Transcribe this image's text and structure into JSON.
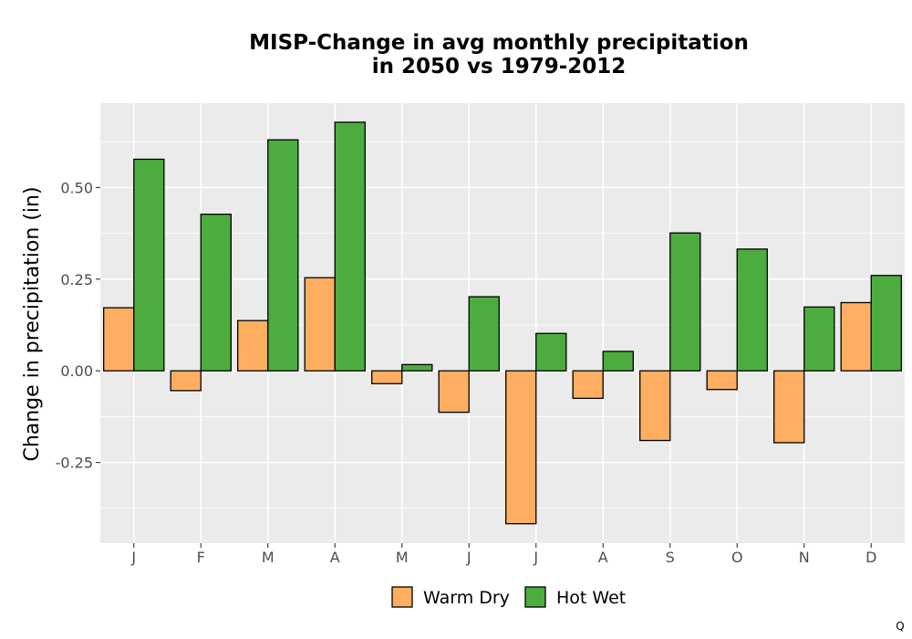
{
  "chart_data": {
    "type": "bar",
    "title_lines": [
      "MISP-Change in avg monthly precipitation",
      "in 2050 vs 1979-2012"
    ],
    "xlabel": "",
    "ylabel": "Change in precipitation (in)",
    "categories": [
      "J",
      "F",
      "M",
      "A",
      "M",
      "J",
      "J",
      "A",
      "S",
      "O",
      "N",
      "D"
    ],
    "series": [
      {
        "name": "Warm Dry",
        "color": "#FDAE61",
        "values": [
          0.172,
          -0.054,
          0.137,
          0.254,
          -0.035,
          -0.113,
          -0.417,
          -0.075,
          -0.19,
          -0.051,
          -0.196,
          0.186
        ]
      },
      {
        "name": "Hot Wet",
        "color": "#4DAC3F",
        "values": [
          0.577,
          0.427,
          0.63,
          0.678,
          0.017,
          0.202,
          0.102,
          0.053,
          0.376,
          0.332,
          0.174,
          0.26
        ]
      }
    ],
    "ylim": [
      -0.47,
      0.73
    ],
    "yticks": [
      -0.25,
      0.0,
      0.25,
      0.5
    ],
    "ytick_labels": [
      "-0.25",
      "0.00",
      "0.25",
      "0.50"
    ],
    "grid": true,
    "panel_color": "#EBEBEB",
    "legend_position": "bottom",
    "caption": "Q"
  }
}
